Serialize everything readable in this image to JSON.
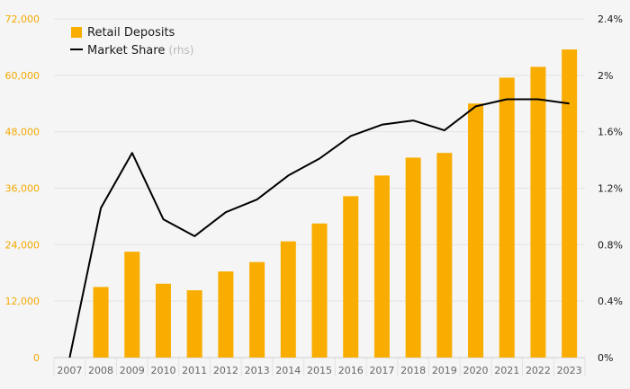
{
  "chart_data": {
    "type": "bar",
    "categories": [
      "2007",
      "2008",
      "2009",
      "2010",
      "2011",
      "2012",
      "2013",
      "2014",
      "2015",
      "2016",
      "2017",
      "2018",
      "2019",
      "2020",
      "2021",
      "2022",
      "2023"
    ],
    "series": [
      {
        "name": "Retail Deposits",
        "type": "bar",
        "axis": "left",
        "color": "#f8ad00",
        "values": [
          0,
          15000,
          22500,
          15700,
          14300,
          18300,
          20300,
          24700,
          28500,
          34300,
          38700,
          42500,
          43500,
          54000,
          59500,
          61800,
          65500
        ]
      },
      {
        "name": "Market Share",
        "name_suffix": "(rhs)",
        "type": "line",
        "axis": "right",
        "color": "#000000",
        "values": [
          0.0,
          1.06,
          1.45,
          0.98,
          0.86,
          1.03,
          1.12,
          1.29,
          1.41,
          1.57,
          1.65,
          1.68,
          1.61,
          1.78,
          1.83,
          1.83,
          1.8
        ]
      }
    ],
    "y_left": {
      "ylim": [
        0,
        72000
      ],
      "ticks": [
        0,
        12000,
        24000,
        36000,
        48000,
        60000,
        72000
      ],
      "tick_labels": [
        "0",
        "12,000",
        "24,000",
        "36,000",
        "48,000",
        "60,000",
        "72,000"
      ],
      "color": "#f4a900"
    },
    "y_right": {
      "ylim": [
        0,
        2.4
      ],
      "ticks": [
        0,
        0.4,
        0.8,
        1.2,
        1.6,
        2.0,
        2.4
      ],
      "tick_labels": [
        "0%",
        "0.4%",
        "0.8%",
        "1.2%",
        "1.6%",
        "2%",
        "2.4%"
      ],
      "color": "#1a1a1a"
    },
    "grid": true,
    "legend_position": "top-left"
  }
}
